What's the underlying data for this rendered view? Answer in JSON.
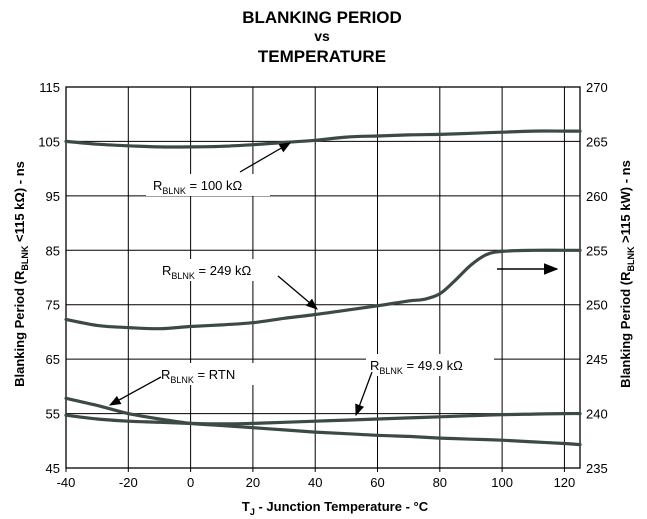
{
  "chart_data": {
    "type": "line",
    "title_lines": [
      "BLANKING PERIOD",
      "vs",
      "TEMPERATURE"
    ],
    "xlabel": {
      "main": "T",
      "sub": "J",
      "rest": " - Junction Temperature - °C"
    },
    "ylabel_left": {
      "pre": "Blanking Period (R",
      "sub": "BLNK",
      "post": " <115 kΩ) - ns"
    },
    "ylabel_right": {
      "pre": "Blanking Period (R",
      "sub": "BLNK",
      "post": " >115 kW) - ns"
    },
    "xlim": [
      -40,
      125
    ],
    "ylim_left": [
      45,
      115
    ],
    "ylim_right": [
      235,
      270
    ],
    "x_ticks": [
      -40,
      -20,
      0,
      20,
      40,
      60,
      80,
      100,
      120
    ],
    "y_ticks_left": [
      45,
      55,
      65,
      75,
      85,
      95,
      105,
      115
    ],
    "y_ticks_right": [
      235,
      240,
      245,
      250,
      255,
      260,
      265,
      270
    ],
    "grid": true,
    "line_color": "#3c4a45",
    "series": [
      {
        "name": "RBLNK = 100 kΩ",
        "axis": "left",
        "x": [
          -40,
          -30,
          -20,
          -10,
          0,
          10,
          20,
          30,
          40,
          50,
          60,
          70,
          80,
          90,
          100,
          110,
          120,
          125
        ],
        "y": [
          105,
          104.5,
          104.2,
          104,
          104,
          104.1,
          104.4,
          104.8,
          105.2,
          105.8,
          106.0,
          106.2,
          106.3,
          106.5,
          106.7,
          106.9,
          106.9,
          106.9
        ]
      },
      {
        "name": "RBLNK = 249 kΩ",
        "axis": "left",
        "x": [
          -40,
          -30,
          -20,
          -10,
          0,
          10,
          20,
          30,
          40,
          50,
          60,
          70,
          75,
          80,
          85,
          90,
          95,
          100,
          110,
          120,
          125
        ],
        "y": [
          72.3,
          71.2,
          70.8,
          70.6,
          71.0,
          71.3,
          71.7,
          72.5,
          73.2,
          74.0,
          74.8,
          75.7,
          76.0,
          77.0,
          79.5,
          82.3,
          84.2,
          84.8,
          85.0,
          85.0,
          85.0
        ]
      },
      {
        "name": "RBLNK = RTN",
        "axis": "left",
        "x": [
          -40,
          -30,
          -20,
          -10,
          0,
          10,
          20,
          30,
          40,
          50,
          60,
          70,
          80,
          90,
          100,
          110,
          120,
          125
        ],
        "y": [
          57.8,
          56.5,
          55.0,
          54.0,
          53.2,
          52.8,
          52.4,
          52.0,
          51.6,
          51.3,
          51.0,
          50.8,
          50.5,
          50.3,
          50.1,
          49.8,
          49.5,
          49.3
        ]
      },
      {
        "name": "RBLNK = 49.9 kΩ",
        "axis": "left",
        "x": [
          -40,
          -30,
          -20,
          -10,
          0,
          10,
          20,
          30,
          40,
          50,
          60,
          70,
          80,
          90,
          100,
          110,
          120,
          125
        ],
        "y": [
          54.7,
          54.0,
          53.6,
          53.4,
          53.2,
          53.1,
          53.2,
          53.4,
          53.6,
          53.8,
          54.0,
          54.2,
          54.4,
          54.6,
          54.8,
          54.9,
          55.0,
          55.0
        ]
      }
    ],
    "annotations": [
      {
        "pre": "R",
        "sub": "BLNK",
        "post": " = 100 kΩ"
      },
      {
        "pre": "R",
        "sub": "BLNK",
        "post": " = 249 kΩ"
      },
      {
        "pre": "R",
        "sub": "BLNK",
        "post": " = RTN"
      },
      {
        "pre": "R",
        "sub": "BLNK",
        "post": " = 49.9 kΩ"
      }
    ]
  }
}
